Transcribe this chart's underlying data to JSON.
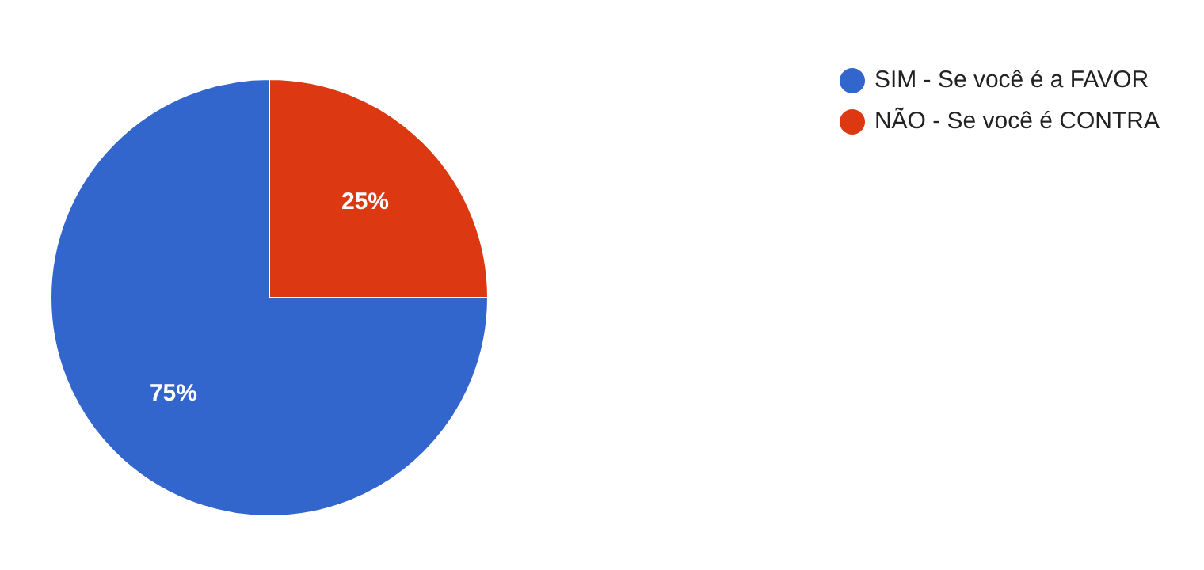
{
  "chart_data": {
    "type": "pie",
    "categories": [
      "SIM - Se você é a FAVOR",
      "NÃO - Se você é CONTRA"
    ],
    "values": [
      75,
      25
    ],
    "colors": [
      "#3366cc",
      "#dc3912"
    ],
    "value_labels": [
      "75%",
      "25%"
    ],
    "legend": "top right"
  }
}
